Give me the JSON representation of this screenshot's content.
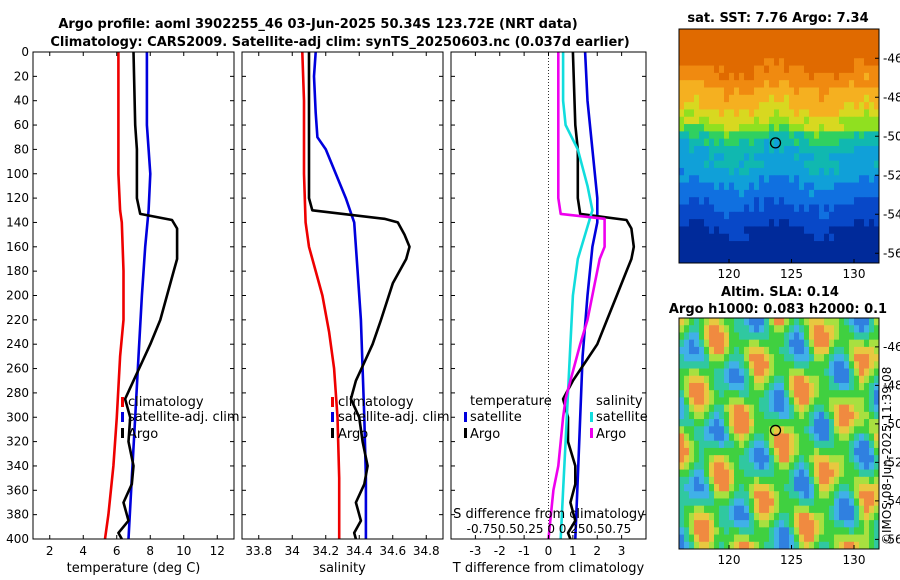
{
  "title_line1": "Argo profile: aoml 3902255_46 03-Jun-2025 50.34S 123.72E (NRT data)",
  "title_line2": "Climatology: CARS2009. Satellite-adj clim: synTS_20250603.nc (0.037d earlier)",
  "side_stamp": "©IMOS 08-Jun-2025 11:39:08",
  "colors": {
    "clim": "#ee0000",
    "sat": "#0000dd",
    "argo": "#000000",
    "magenta": "#ee00ee",
    "cyan": "#11dddd"
  },
  "chart_data": [
    {
      "type": "line",
      "name": "temperature",
      "xlabel": "temperature (deg C)",
      "xlim": [
        1,
        13
      ],
      "xticks": [
        "2",
        "4",
        "6",
        "8",
        "10",
        "12"
      ],
      "ylim": [
        0,
        400
      ],
      "yticks": [
        "0",
        "20",
        "40",
        "60",
        "80",
        "100",
        "120",
        "140",
        "160",
        "180",
        "200",
        "220",
        "240",
        "260",
        "280",
        "300",
        "320",
        "340",
        "360",
        "380",
        "400"
      ],
      "series": [
        {
          "name": "climatology",
          "color": "clim",
          "points": [
            [
              6.1,
              0
            ],
            [
              6.1,
              40
            ],
            [
              6.1,
              100
            ],
            [
              6.2,
              130
            ],
            [
              6.3,
              140
            ],
            [
              6.4,
              180
            ],
            [
              6.4,
              220
            ],
            [
              6.2,
              250
            ],
            [
              6.0,
              300
            ],
            [
              5.8,
              340
            ],
            [
              5.5,
              380
            ],
            [
              5.3,
              400
            ]
          ]
        },
        {
          "name": "satellite-adj. clim",
          "color": "sat",
          "points": [
            [
              7.8,
              0
            ],
            [
              7.8,
              40
            ],
            [
              7.8,
              60
            ],
            [
              7.9,
              80
            ],
            [
              8.0,
              100
            ],
            [
              7.9,
              130
            ],
            [
              7.7,
              160
            ],
            [
              7.5,
              200
            ],
            [
              7.3,
              250
            ],
            [
              7.1,
              300
            ],
            [
              6.9,
              350
            ],
            [
              6.7,
              400
            ]
          ]
        },
        {
          "name": "Argo",
          "color": "argo",
          "points": [
            [
              7.0,
              0
            ],
            [
              7.1,
              60
            ],
            [
              7.2,
              80
            ],
            [
              7.2,
              120
            ],
            [
              7.4,
              133
            ],
            [
              9.3,
              138
            ],
            [
              9.6,
              145
            ],
            [
              9.6,
              160
            ],
            [
              9.6,
              170
            ],
            [
              9.4,
              180
            ],
            [
              9.0,
              200
            ],
            [
              8.6,
              220
            ],
            [
              8.0,
              240
            ],
            [
              7.5,
              255
            ],
            [
              7.0,
              270
            ],
            [
              6.5,
              285
            ],
            [
              6.8,
              300
            ],
            [
              6.7,
              320
            ],
            [
              7.0,
              340
            ],
            [
              6.9,
              355
            ],
            [
              6.4,
              370
            ],
            [
              6.7,
              385
            ],
            [
              6.1,
              395
            ],
            [
              6.3,
              400
            ]
          ]
        }
      ],
      "legend": {
        "entries": [
          "climatology",
          "satellite-adj. clim",
          "Argo"
        ]
      }
    },
    {
      "type": "line",
      "name": "salinity",
      "xlabel": "salinity",
      "xlim": [
        33.7,
        34.9
      ],
      "xticks": [
        "33.8",
        "34",
        "34.2",
        "34.4",
        "34.6",
        "34.8"
      ],
      "ylim": [
        0,
        400
      ],
      "series": [
        {
          "name": "climatology",
          "color": "clim",
          "points": [
            [
              34.06,
              0
            ],
            [
              34.07,
              40
            ],
            [
              34.07,
              100
            ],
            [
              34.08,
              140
            ],
            [
              34.1,
              160
            ],
            [
              34.14,
              180
            ],
            [
              34.18,
              200
            ],
            [
              34.22,
              230
            ],
            [
              34.25,
              260
            ],
            [
              34.27,
              300
            ],
            [
              34.28,
              350
            ],
            [
              34.28,
              400
            ]
          ]
        },
        {
          "name": "satellite-adj. clim",
          "color": "sat",
          "points": [
            [
              34.14,
              0
            ],
            [
              34.13,
              20
            ],
            [
              34.14,
              50
            ],
            [
              34.15,
              70
            ],
            [
              34.2,
              80
            ],
            [
              34.32,
              120
            ],
            [
              34.37,
              140
            ],
            [
              34.39,
              180
            ],
            [
              34.41,
              220
            ],
            [
              34.42,
              260
            ],
            [
              34.43,
              300
            ],
            [
              34.44,
              350
            ],
            [
              34.44,
              400
            ]
          ]
        },
        {
          "name": "Argo",
          "color": "argo",
          "points": [
            [
              34.1,
              0
            ],
            [
              34.1,
              60
            ],
            [
              34.1,
              80
            ],
            [
              34.1,
              120
            ],
            [
              34.12,
              130
            ],
            [
              34.55,
              137
            ],
            [
              34.63,
              140
            ],
            [
              34.67,
              150
            ],
            [
              34.7,
              160
            ],
            [
              34.68,
              170
            ],
            [
              34.6,
              190
            ],
            [
              34.53,
              220
            ],
            [
              34.48,
              240
            ],
            [
              34.43,
              255
            ],
            [
              34.38,
              270
            ],
            [
              34.35,
              285
            ],
            [
              34.4,
              300
            ],
            [
              34.42,
              320
            ],
            [
              34.45,
              340
            ],
            [
              34.43,
              355
            ],
            [
              34.38,
              370
            ],
            [
              34.41,
              385
            ],
            [
              34.37,
              395
            ],
            [
              34.38,
              400
            ]
          ]
        }
      ],
      "legend": {
        "entries": [
          "climatology",
          "satellite-adj. clim",
          "Argo"
        ]
      }
    },
    {
      "type": "line",
      "name": "differences",
      "xlabel": "T difference from climatology",
      "xlabel_top": "S difference from climatology",
      "xlim": [
        -4,
        4
      ],
      "xticks": [
        "-3",
        "-2",
        "-1",
        "0",
        "1",
        "2",
        "3"
      ],
      "top_ticks": "-0.750.50.25  0  0.250.50.75",
      "ylim": [
        0,
        400
      ],
      "series": [
        {
          "name": "temperature satellite",
          "color": "sat",
          "points": [
            [
              1.5,
              0
            ],
            [
              1.6,
              40
            ],
            [
              1.8,
              80
            ],
            [
              2.0,
              120
            ],
            [
              2.0,
              140
            ],
            [
              1.8,
              160
            ],
            [
              1.6,
              200
            ],
            [
              1.4,
              250
            ],
            [
              1.3,
              300
            ],
            [
              1.2,
              350
            ],
            [
              1.1,
              400
            ]
          ]
        },
        {
          "name": "temperature Argo",
          "color": "argo",
          "points": [
            [
              1.0,
              0
            ],
            [
              1.1,
              60
            ],
            [
              1.2,
              80
            ],
            [
              1.2,
              120
            ],
            [
              1.3,
              133
            ],
            [
              3.2,
              138
            ],
            [
              3.4,
              145
            ],
            [
              3.5,
              160
            ],
            [
              3.4,
              170
            ],
            [
              3.2,
              180
            ],
            [
              2.8,
              200
            ],
            [
              2.4,
              220
            ],
            [
              2.0,
              240
            ],
            [
              1.5,
              255
            ],
            [
              1.0,
              270
            ],
            [
              0.6,
              285
            ],
            [
              0.8,
              300
            ],
            [
              0.8,
              320
            ],
            [
              1.1,
              340
            ],
            [
              1.1,
              355
            ],
            [
              0.9,
              370
            ],
            [
              1.1,
              385
            ],
            [
              0.8,
              395
            ],
            [
              0.9,
              400
            ]
          ]
        },
        {
          "name": "salinity satellite",
          "color": "cyan",
          "points": [
            [
              0.6,
              0
            ],
            [
              0.6,
              40
            ],
            [
              0.7,
              60
            ],
            [
              1.2,
              80
            ],
            [
              1.6,
              110
            ],
            [
              1.8,
              130
            ],
            [
              1.5,
              150
            ],
            [
              1.2,
              170
            ],
            [
              1.0,
              200
            ],
            [
              0.9,
              240
            ],
            [
              0.8,
              280
            ],
            [
              0.7,
              320
            ],
            [
              0.6,
              360
            ],
            [
              0.5,
              400
            ]
          ]
        },
        {
          "name": "salinity Argo",
          "color": "magenta",
          "points": [
            [
              0.4,
              0
            ],
            [
              0.4,
              60
            ],
            [
              0.4,
              80
            ],
            [
              0.4,
              120
            ],
            [
              0.5,
              133
            ],
            [
              2.3,
              137
            ],
            [
              2.3,
              140
            ],
            [
              2.3,
              160
            ],
            [
              2.1,
              170
            ],
            [
              1.9,
              190
            ],
            [
              1.6,
              220
            ],
            [
              1.3,
              240
            ],
            [
              1.1,
              255
            ],
            [
              0.9,
              270
            ],
            [
              0.7,
              285
            ],
            [
              0.6,
              300
            ],
            [
              0.5,
              320
            ],
            [
              0.4,
              340
            ],
            [
              0.2,
              360
            ],
            [
              0.1,
              380
            ],
            [
              0.0,
              400
            ]
          ]
        }
      ],
      "legend_left": {
        "title": "temperature",
        "entries": [
          "satellite",
          "Argo"
        ]
      },
      "legend_right": {
        "title": "salinity",
        "entries": [
          "satellite",
          "Argo"
        ]
      }
    },
    {
      "type": "heatmap",
      "name": "sst_map",
      "title": "sat. SST: 7.76 Argo: 7.34",
      "xlim": [
        116,
        132
      ],
      "ylim": [
        -56.5,
        -44.5
      ],
      "xticks": [
        "120",
        "125",
        "130"
      ],
      "yticks": [
        "-46",
        "-48",
        "-50",
        "-52",
        "-54",
        "-56"
      ],
      "marker": [
        123.72,
        -50.34
      ]
    },
    {
      "type": "heatmap",
      "name": "sla_map",
      "title_line1": "Altim. SLA: 0.14",
      "title_line2": "Argo h1000: 0.083 h2000: 0.1",
      "xlim": [
        116,
        132
      ],
      "ylim": [
        -56.5,
        -44.5
      ],
      "xticks": [
        "120",
        "125",
        "130"
      ],
      "yticks": [
        "-46",
        "-48",
        "-50",
        "-52",
        "-54",
        "-56"
      ],
      "marker": [
        123.72,
        -50.34
      ]
    }
  ]
}
